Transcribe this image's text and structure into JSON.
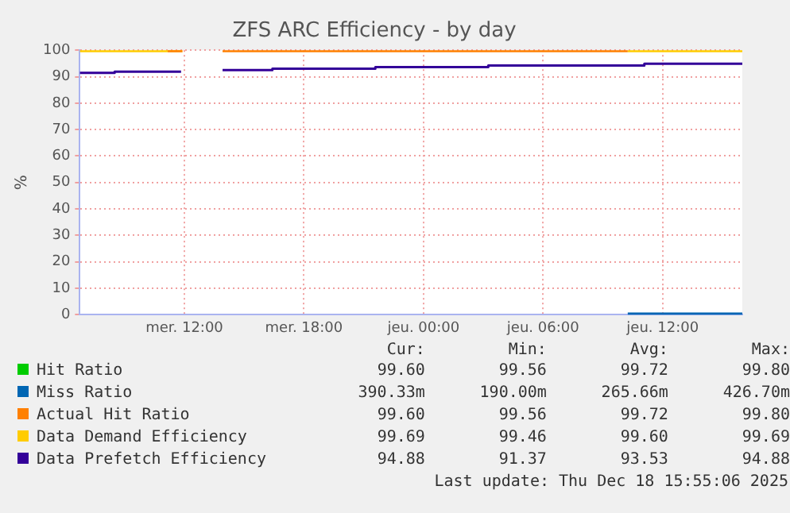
{
  "chart_data": {
    "type": "step",
    "title": "ZFS ARC Efficiency - by day",
    "ylabel": "%",
    "xlim": [
      "2025-12-17T06:45",
      "2025-12-18T16:00"
    ],
    "xticks": [
      {
        "value": "2025-12-17T12:00",
        "label": "mer. 12:00"
      },
      {
        "value": "2025-12-17T18:00",
        "label": "mer. 18:00"
      },
      {
        "value": "2025-12-18T00:00",
        "label": "jeu. 00:00"
      },
      {
        "value": "2025-12-18T06:00",
        "label": "jeu. 06:00"
      },
      {
        "value": "2025-12-18T12:00",
        "label": "jeu. 12:00"
      }
    ],
    "ylim": [
      0,
      100
    ],
    "yticks": [
      0,
      10,
      20,
      30,
      40,
      50,
      60,
      70,
      80,
      90,
      100
    ],
    "grid": true,
    "legend": "bottom",
    "series": [
      {
        "name": "Hit Ratio",
        "color": "#00cc00"
      },
      {
        "name": "Miss Ratio",
        "color": "#0066b3",
        "x": [
          "2025-12-18T10:15",
          "2025-12-18T16:00"
        ],
        "values": [
          0.4,
          0.4
        ]
      },
      {
        "name": "Actual Hit Ratio",
        "color": "#ff8000",
        "x": [
          "2025-12-17T11:10",
          "2025-12-17T11:54",
          "2025-12-17T12:00",
          "2025-12-17T13:55",
          "2025-12-18T10:15"
        ],
        "values": [
          99.7,
          99.7,
          null,
          99.7,
          99.7
        ]
      },
      {
        "name": "Data Demand Efficiency",
        "color": "#ffcc00",
        "x": [
          "2025-12-17T06:45",
          "2025-12-17T11:54",
          "2025-12-17T12:00",
          "2025-12-18T10:15",
          "2025-12-18T16:00"
        ],
        "values": [
          99.7,
          99.7,
          null,
          99.7,
          99.7
        ]
      },
      {
        "name": "Data Prefetch Efficiency",
        "color": "#330099",
        "x": [
          "2025-12-17T06:45",
          "2025-12-17T08:30",
          "2025-12-17T11:50",
          "2025-12-17T12:00",
          "2025-12-17T13:55",
          "2025-12-17T16:25",
          "2025-12-17T21:35",
          "2025-12-18T03:15",
          "2025-12-18T11:05",
          "2025-12-18T16:00"
        ],
        "values": [
          91.4,
          91.9,
          91.9,
          null,
          92.5,
          93.0,
          93.6,
          94.2,
          94.9,
          94.9
        ]
      }
    ],
    "annotations": [
      "Cur:",
      "Min:",
      "Avg:",
      "Max:",
      "99.60",
      "99.56",
      "99.72",
      "99.80",
      "390.33m",
      "190.00m",
      "265.66m",
      "426.70m",
      "99.60",
      "99.56",
      "99.72",
      "99.80",
      "99.69",
      "99.46",
      "99.60",
      "99.69",
      "94.88",
      "91.37",
      "93.53",
      "94.88",
      "Last update: Thu Dec 18 15:55:06 2025"
    ]
  }
}
